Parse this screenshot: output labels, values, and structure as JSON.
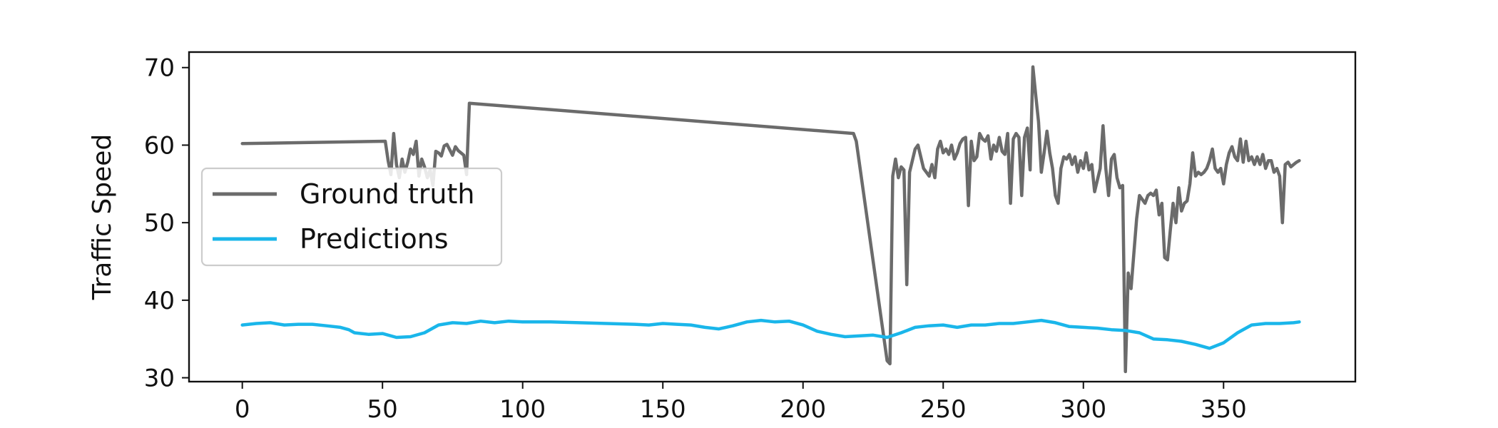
{
  "chart_data": {
    "type": "line",
    "title": "",
    "xlabel": "",
    "ylabel": "Traffic Speed",
    "xlim": [
      -19,
      397
    ],
    "ylim": [
      29.5,
      72
    ],
    "xticks": [
      0,
      50,
      100,
      150,
      200,
      250,
      300,
      350
    ],
    "yticks": [
      30,
      40,
      50,
      60,
      70
    ],
    "grid": false,
    "legend_position": "center-left",
    "series": [
      {
        "name": "Ground truth",
        "color": "#6b6b6b",
        "points": [
          [
            0,
            60.2
          ],
          [
            51,
            60.5
          ],
          [
            52,
            58.0
          ],
          [
            53,
            56.2
          ],
          [
            54,
            61.5
          ],
          [
            55,
            57.5
          ],
          [
            56,
            55.8
          ],
          [
            57,
            58.2
          ],
          [
            58,
            56.5
          ],
          [
            59,
            57.8
          ],
          [
            60,
            59.5
          ],
          [
            61,
            58.8
          ],
          [
            62,
            60.5
          ],
          [
            63,
            56.0
          ],
          [
            64,
            58.2
          ],
          [
            65,
            57.2
          ],
          [
            66,
            55.8
          ],
          [
            67,
            56.8
          ],
          [
            68,
            54.8
          ],
          [
            69,
            59.2
          ],
          [
            70,
            59.0
          ],
          [
            71,
            58.6
          ],
          [
            72,
            59.9
          ],
          [
            73,
            60.1
          ],
          [
            74,
            59.4
          ],
          [
            75,
            58.7
          ],
          [
            76,
            59.8
          ],
          [
            77,
            59.3
          ],
          [
            78,
            59.0
          ],
          [
            79,
            58.7
          ],
          [
            80,
            56.2
          ],
          [
            81,
            65.4
          ],
          [
            218,
            61.5
          ],
          [
            219,
            60.5
          ],
          [
            230,
            32.2
          ],
          [
            231,
            31.8
          ],
          [
            232,
            56.0
          ],
          [
            233,
            58.2
          ],
          [
            234,
            55.8
          ],
          [
            235,
            57.2
          ],
          [
            236,
            56.8
          ],
          [
            237,
            42.0
          ],
          [
            238,
            56.5
          ],
          [
            239,
            58.0
          ],
          [
            240,
            59.5
          ],
          [
            241,
            60.0
          ],
          [
            242,
            58.5
          ],
          [
            243,
            57.0
          ],
          [
            244,
            56.5
          ],
          [
            245,
            56.0
          ],
          [
            246,
            57.5
          ],
          [
            247,
            55.8
          ],
          [
            248,
            59.5
          ],
          [
            249,
            60.5
          ],
          [
            250,
            59.0
          ],
          [
            251,
            59.5
          ],
          [
            252,
            58.8
          ],
          [
            253,
            60.0
          ],
          [
            254,
            58.2
          ],
          [
            255,
            59.0
          ],
          [
            256,
            60.2
          ],
          [
            257,
            60.8
          ],
          [
            258,
            61.0
          ],
          [
            259,
            52.2
          ],
          [
            260,
            60.5
          ],
          [
            261,
            58.0
          ],
          [
            262,
            58.5
          ],
          [
            263,
            61.5
          ],
          [
            264,
            60.8
          ],
          [
            265,
            60.5
          ],
          [
            266,
            61.2
          ],
          [
            267,
            58.2
          ],
          [
            268,
            60.0
          ],
          [
            269,
            59.2
          ],
          [
            270,
            61.0
          ],
          [
            271,
            59.2
          ],
          [
            272,
            58.8
          ],
          [
            273,
            61.5
          ],
          [
            274,
            52.5
          ],
          [
            275,
            60.8
          ],
          [
            276,
            61.5
          ],
          [
            277,
            61.0
          ],
          [
            278,
            53.5
          ],
          [
            279,
            61.0
          ],
          [
            280,
            62.2
          ],
          [
            281,
            56.8
          ],
          [
            282,
            70.1
          ],
          [
            283,
            66.5
          ],
          [
            284,
            63.0
          ],
          [
            285,
            56.5
          ],
          [
            286,
            59.0
          ],
          [
            287,
            61.8
          ],
          [
            288,
            59.0
          ],
          [
            289,
            57.0
          ],
          [
            290,
            53.5
          ],
          [
            291,
            52.5
          ],
          [
            292,
            57.0
          ],
          [
            293,
            58.5
          ],
          [
            294,
            58.2
          ],
          [
            295,
            58.8
          ],
          [
            296,
            57.5
          ],
          [
            297,
            58.5
          ],
          [
            298,
            56.5
          ],
          [
            299,
            58.0
          ],
          [
            300,
            57.0
          ],
          [
            301,
            59.0
          ],
          [
            302,
            56.8
          ],
          [
            303,
            57.5
          ],
          [
            304,
            54.0
          ],
          [
            305,
            55.5
          ],
          [
            306,
            57.0
          ],
          [
            307,
            62.5
          ],
          [
            308,
            57.0
          ],
          [
            309,
            53.5
          ],
          [
            310,
            58.2
          ],
          [
            311,
            58.8
          ],
          [
            312,
            55.8
          ],
          [
            313,
            54.5
          ],
          [
            314,
            54.8
          ],
          [
            315,
            30.8
          ],
          [
            316,
            43.5
          ],
          [
            317,
            41.5
          ],
          [
            318,
            46.0
          ],
          [
            319,
            50.5
          ],
          [
            320,
            53.5
          ],
          [
            321,
            53.0
          ],
          [
            322,
            52.5
          ],
          [
            323,
            53.5
          ],
          [
            324,
            53.8
          ],
          [
            325,
            53.5
          ],
          [
            326,
            54.2
          ],
          [
            327,
            51.0
          ],
          [
            328,
            52.5
          ],
          [
            329,
            45.5
          ],
          [
            330,
            45.2
          ],
          [
            331,
            49.0
          ],
          [
            332,
            52.5
          ],
          [
            333,
            50.0
          ],
          [
            334,
            54.5
          ],
          [
            335,
            51.5
          ],
          [
            336,
            52.5
          ],
          [
            337,
            52.8
          ],
          [
            338,
            55.0
          ],
          [
            339,
            59.0
          ],
          [
            340,
            56.0
          ],
          [
            341,
            56.5
          ],
          [
            342,
            56.2
          ],
          [
            343,
            56.5
          ],
          [
            344,
            57.0
          ],
          [
            345,
            58.0
          ],
          [
            346,
            59.5
          ],
          [
            347,
            57.0
          ],
          [
            348,
            56.5
          ],
          [
            349,
            57.0
          ],
          [
            350,
            55.0
          ],
          [
            351,
            57.5
          ],
          [
            352,
            59.0
          ],
          [
            353,
            59.8
          ],
          [
            354,
            58.5
          ],
          [
            355,
            58.0
          ],
          [
            356,
            60.8
          ],
          [
            357,
            57.8
          ],
          [
            358,
            60.5
          ],
          [
            359,
            58.0
          ],
          [
            360,
            58.5
          ],
          [
            361,
            57.5
          ],
          [
            362,
            58.5
          ],
          [
            363,
            57.5
          ],
          [
            364,
            58.8
          ],
          [
            365,
            57.0
          ],
          [
            366,
            58.0
          ],
          [
            367,
            58.0
          ],
          [
            368,
            56.5
          ],
          [
            369,
            57.0
          ],
          [
            370,
            56.0
          ],
          [
            371,
            50.0
          ],
          [
            372,
            57.5
          ],
          [
            373,
            57.8
          ],
          [
            374,
            57.2
          ],
          [
            375,
            57.5
          ],
          [
            376,
            57.8
          ],
          [
            377,
            58.0
          ]
        ]
      },
      {
        "name": "Predictions",
        "color": "#1ab6ea",
        "points": [
          [
            0,
            36.8
          ],
          [
            5,
            37.0
          ],
          [
            10,
            37.1
          ],
          [
            15,
            36.8
          ],
          [
            20,
            36.9
          ],
          [
            25,
            36.9
          ],
          [
            30,
            36.7
          ],
          [
            35,
            36.5
          ],
          [
            38,
            36.2
          ],
          [
            40,
            35.8
          ],
          [
            45,
            35.6
          ],
          [
            50,
            35.7
          ],
          [
            55,
            35.2
          ],
          [
            60,
            35.3
          ],
          [
            65,
            35.8
          ],
          [
            70,
            36.8
          ],
          [
            75,
            37.1
          ],
          [
            80,
            37.0
          ],
          [
            85,
            37.3
          ],
          [
            90,
            37.1
          ],
          [
            95,
            37.3
          ],
          [
            100,
            37.2
          ],
          [
            110,
            37.2
          ],
          [
            120,
            37.1
          ],
          [
            130,
            37.0
          ],
          [
            140,
            36.9
          ],
          [
            145,
            36.8
          ],
          [
            150,
            37.0
          ],
          [
            155,
            36.9
          ],
          [
            160,
            36.8
          ],
          [
            165,
            36.5
          ],
          [
            170,
            36.3
          ],
          [
            175,
            36.7
          ],
          [
            180,
            37.2
          ],
          [
            185,
            37.4
          ],
          [
            190,
            37.2
          ],
          [
            195,
            37.3
          ],
          [
            200,
            36.8
          ],
          [
            205,
            36.0
          ],
          [
            210,
            35.6
          ],
          [
            215,
            35.3
          ],
          [
            220,
            35.4
          ],
          [
            225,
            35.5
          ],
          [
            230,
            35.2
          ],
          [
            235,
            35.8
          ],
          [
            240,
            36.5
          ],
          [
            245,
            36.7
          ],
          [
            250,
            36.8
          ],
          [
            255,
            36.5
          ],
          [
            260,
            36.8
          ],
          [
            265,
            36.8
          ],
          [
            270,
            37.0
          ],
          [
            275,
            37.0
          ],
          [
            280,
            37.2
          ],
          [
            285,
            37.4
          ],
          [
            290,
            37.1
          ],
          [
            295,
            36.6
          ],
          [
            300,
            36.5
          ],
          [
            305,
            36.4
          ],
          [
            310,
            36.2
          ],
          [
            315,
            36.1
          ],
          [
            320,
            35.8
          ],
          [
            325,
            35.0
          ],
          [
            330,
            34.9
          ],
          [
            335,
            34.7
          ],
          [
            340,
            34.3
          ],
          [
            345,
            33.8
          ],
          [
            350,
            34.5
          ],
          [
            355,
            35.8
          ],
          [
            360,
            36.8
          ],
          [
            365,
            37.0
          ],
          [
            370,
            37.0
          ],
          [
            375,
            37.1
          ],
          [
            377,
            37.2
          ]
        ]
      }
    ]
  }
}
